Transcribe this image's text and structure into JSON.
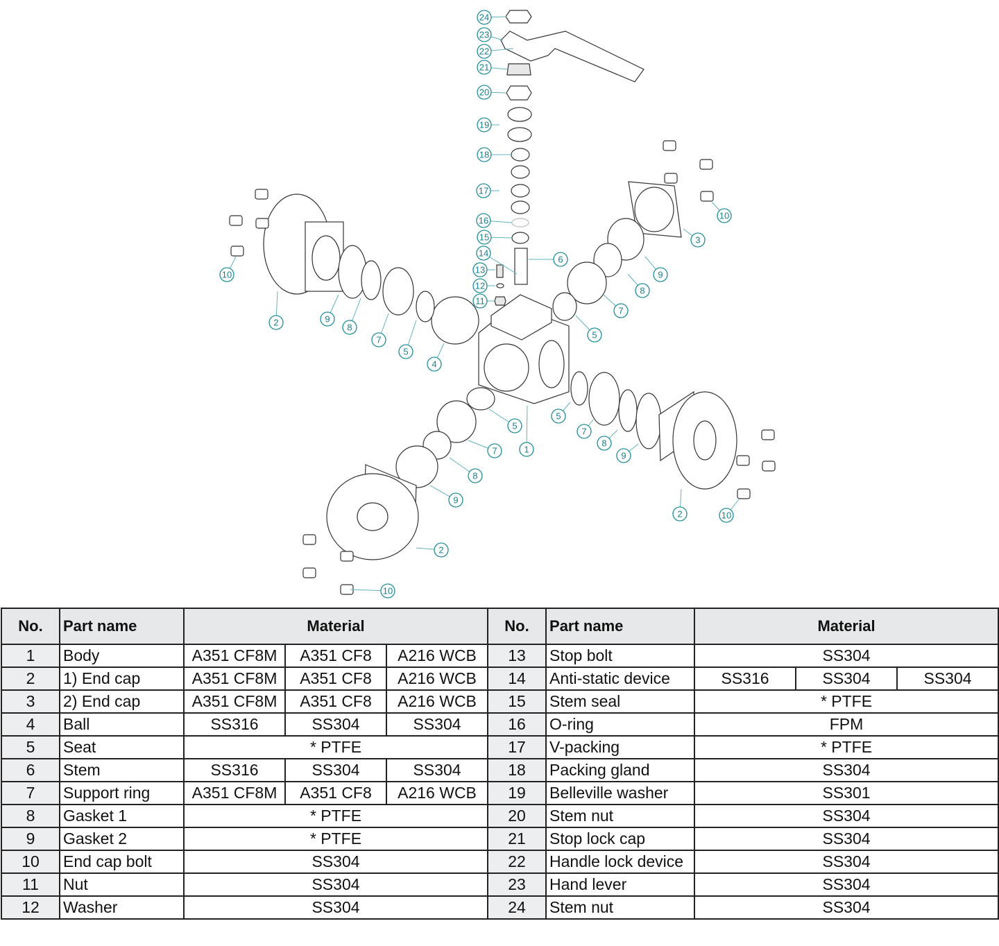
{
  "diagram": {
    "accent_color": "#1d8d99",
    "callouts": [
      "24",
      "23",
      "22",
      "21",
      "20",
      "19",
      "18",
      "17",
      "16",
      "15",
      "14",
      "13",
      "12",
      "11",
      "6",
      "3",
      "10",
      "9",
      "8",
      "7",
      "5",
      "10",
      "2",
      "9",
      "8",
      "7",
      "5",
      "4",
      "5",
      "7",
      "8",
      "9",
      "2",
      "10",
      "1",
      "5",
      "7",
      "8",
      "9",
      "2",
      "10"
    ]
  },
  "table": {
    "headers": {
      "no": "No.",
      "part_name": "Part name",
      "material": "Material"
    },
    "left_rows": [
      {
        "no": "1",
        "name": "Body",
        "mat": [
          "A351 CF8M",
          "A351 CF8",
          "A216 WCB"
        ]
      },
      {
        "no": "2",
        "name": "1) End cap",
        "mat": [
          "A351 CF8M",
          "A351 CF8",
          "A216 WCB"
        ]
      },
      {
        "no": "3",
        "name": "2) End cap",
        "mat": [
          "A351 CF8M",
          "A351 CF8",
          "A216 WCB"
        ]
      },
      {
        "no": "4",
        "name": "Ball",
        "mat": [
          "SS316",
          "SS304",
          "SS304"
        ]
      },
      {
        "no": "5",
        "name": "Seat",
        "mat": [
          "* PTFE"
        ]
      },
      {
        "no": "6",
        "name": "Stem",
        "mat": [
          "SS316",
          "SS304",
          "SS304"
        ]
      },
      {
        "no": "7",
        "name": "Support ring",
        "mat": [
          "A351 CF8M",
          "A351 CF8",
          "A216 WCB"
        ]
      },
      {
        "no": "8",
        "name": "Gasket 1",
        "mat": [
          "* PTFE"
        ]
      },
      {
        "no": "9",
        "name": "Gasket 2",
        "mat": [
          "* PTFE"
        ]
      },
      {
        "no": "10",
        "name": "End cap bolt",
        "mat": [
          "SS304"
        ]
      },
      {
        "no": "11",
        "name": "Nut",
        "mat": [
          "SS304"
        ]
      },
      {
        "no": "12",
        "name": "Washer",
        "mat": [
          "SS304"
        ]
      }
    ],
    "right_rows": [
      {
        "no": "13",
        "name": "Stop bolt",
        "mat": [
          "SS304"
        ]
      },
      {
        "no": "14",
        "name": "Anti-static device",
        "mat": [
          "SS316",
          "SS304",
          "SS304"
        ]
      },
      {
        "no": "15",
        "name": "Stem seal",
        "mat": [
          "* PTFE"
        ]
      },
      {
        "no": "16",
        "name": "O-ring",
        "mat": [
          "FPM"
        ]
      },
      {
        "no": "17",
        "name": "V-packing",
        "mat": [
          "* PTFE"
        ]
      },
      {
        "no": "18",
        "name": "Packing gland",
        "mat": [
          "SS304"
        ]
      },
      {
        "no": "19",
        "name": "Belleville washer",
        "mat": [
          "SS301"
        ]
      },
      {
        "no": "20",
        "name": "Stem nut",
        "mat": [
          "SS304"
        ]
      },
      {
        "no": "21",
        "name": "Stop lock cap",
        "mat": [
          "SS304"
        ]
      },
      {
        "no": "22",
        "name": "Handle lock device",
        "mat": [
          "SS304"
        ]
      },
      {
        "no": "23",
        "name": "Hand lever",
        "mat": [
          "SS304"
        ]
      },
      {
        "no": "24",
        "name": "Stem nut",
        "mat": [
          "SS304"
        ]
      }
    ]
  }
}
